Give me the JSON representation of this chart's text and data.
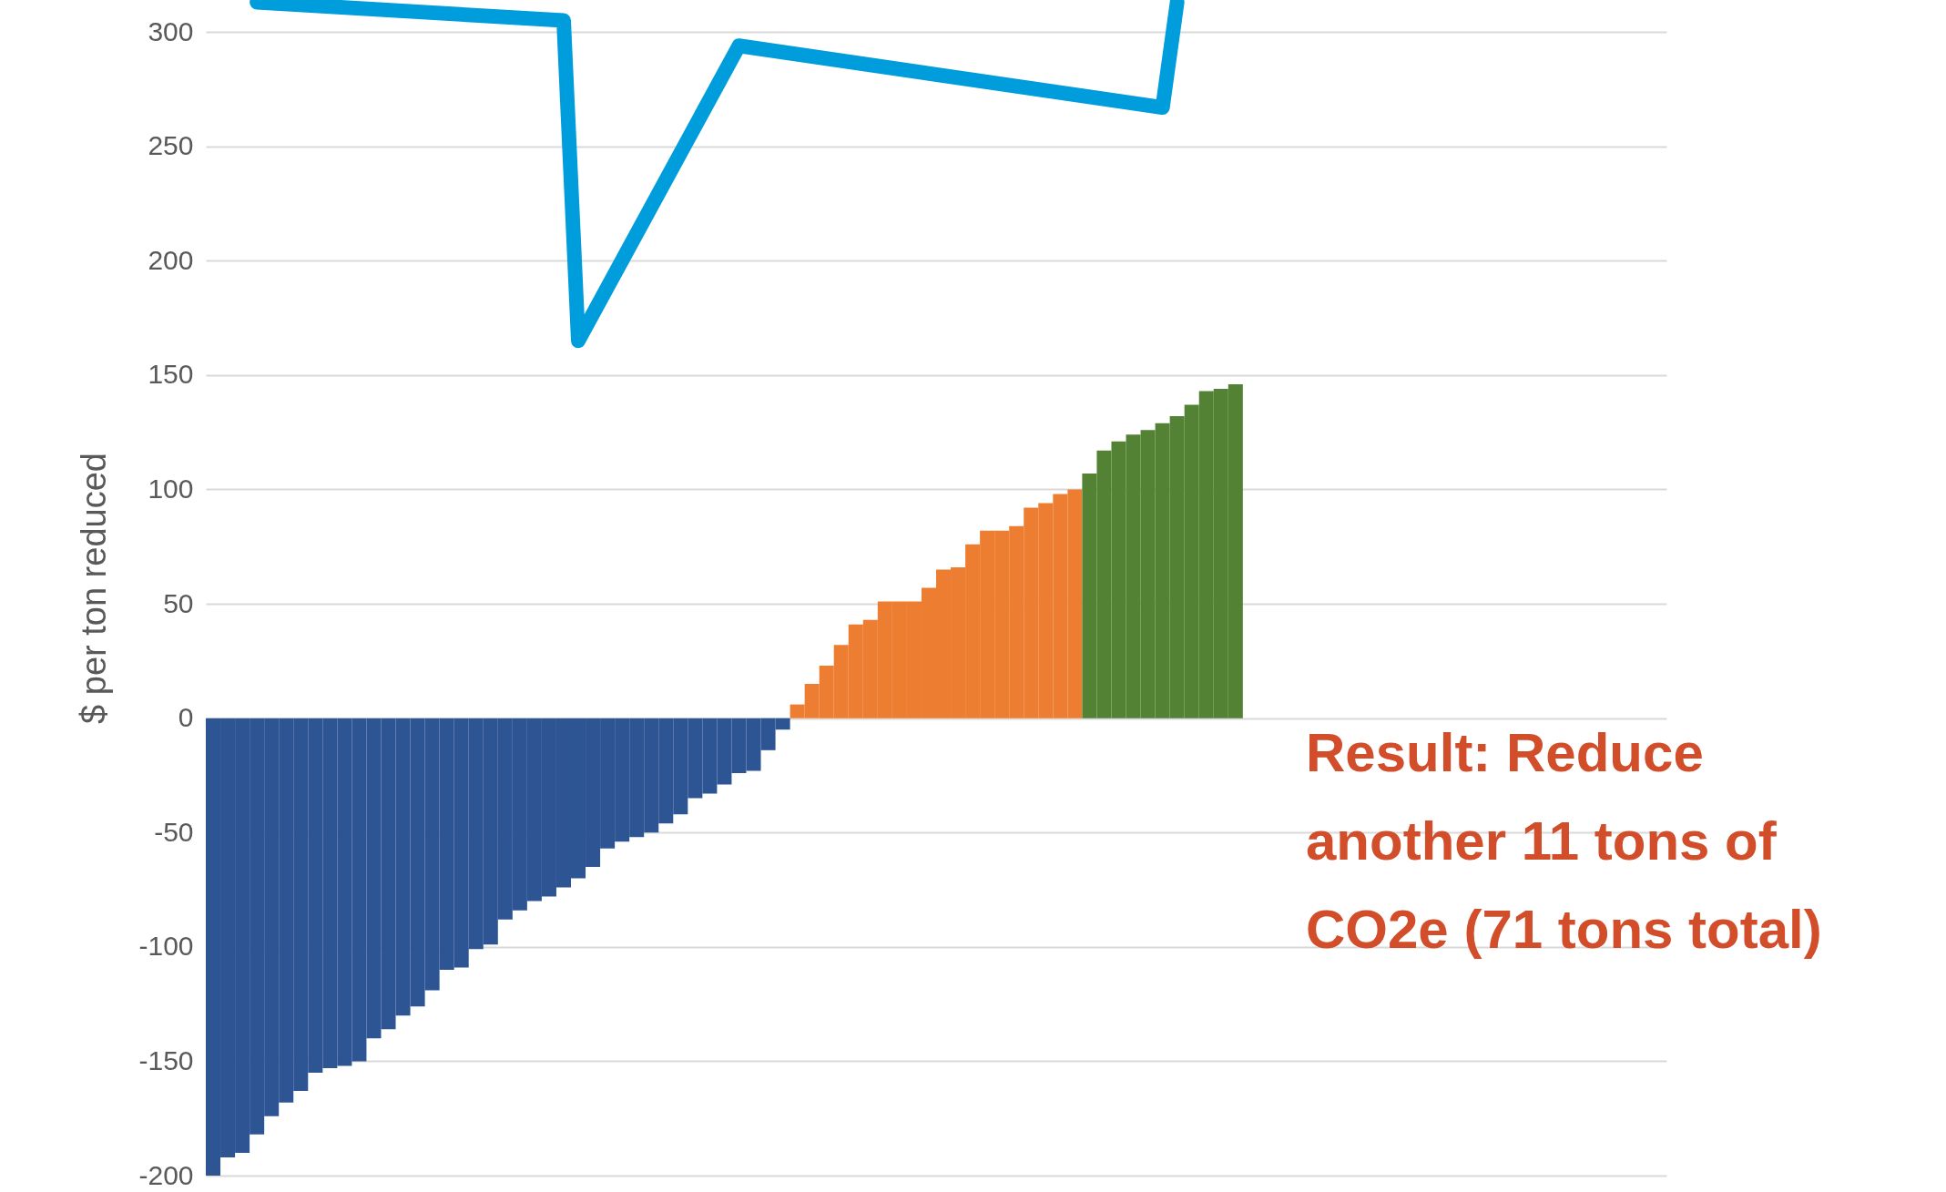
{
  "chart_data": {
    "type": "bar",
    "ylabel": "$ per ton reduced",
    "categories": [
      null,
      null,
      null,
      null,
      null,
      null,
      null,
      null,
      null,
      null,
      null,
      null,
      null,
      null,
      null,
      null,
      null,
      null,
      null,
      null,
      null,
      null,
      null,
      null,
      null,
      null,
      null,
      null,
      null,
      null,
      null,
      null,
      null,
      null,
      null,
      null,
      null,
      null,
      null,
      null,
      null,
      null,
      null,
      null,
      null,
      null,
      null,
      null,
      null,
      null,
      null,
      null,
      null,
      null,
      null,
      null,
      null,
      null,
      null,
      null,
      null,
      null,
      null,
      null,
      null,
      null,
      null,
      null,
      null,
      null,
      null,
      null,
      null,
      null,
      null,
      null,
      null,
      null,
      null,
      null,
      null,
      null,
      null,
      null,
      null,
      null,
      null,
      null,
      null,
      null,
      null,
      null,
      null,
      null,
      null,
      null,
      null,
      null,
      null,
      null
    ],
    "ylim": [
      -200,
      314
    ],
    "yticks": [
      -200,
      -150,
      -100,
      -50,
      0,
      50,
      100,
      150,
      200,
      250,
      300
    ],
    "grid": "y",
    "tick_labels": "y",
    "series": [
      {
        "color": "#2e5593",
        "values": [
          -200,
          -192,
          -190,
          -182,
          -174,
          -168,
          -163,
          -155,
          -153,
          -152,
          -150,
          -140,
          -136,
          -130,
          -126,
          -119,
          -110,
          -109,
          -101,
          -99,
          -88,
          -84,
          -80,
          -78,
          -74,
          -70,
          -65,
          -57,
          -54,
          -52,
          -50,
          -46,
          -42,
          -35,
          -33,
          -29,
          -24,
          -23,
          -14,
          -5,
          null,
          null,
          null,
          null,
          null,
          null,
          null,
          null,
          null,
          null,
          null,
          null,
          null,
          null,
          null,
          null,
          null,
          null,
          null,
          null,
          null,
          null,
          null,
          null,
          null,
          null,
          null,
          null,
          null,
          null,
          null,
          null,
          null,
          null,
          null,
          null,
          null,
          null,
          null,
          null,
          null,
          null,
          null,
          null,
          null,
          null,
          null,
          null,
          null,
          null,
          null,
          null,
          null,
          null,
          null,
          null,
          null,
          null,
          null,
          null
        ]
      },
      {
        "color": "#ed7d31",
        "values": [
          null,
          null,
          null,
          null,
          null,
          null,
          null,
          null,
          null,
          null,
          null,
          null,
          null,
          null,
          null,
          null,
          null,
          null,
          null,
          null,
          null,
          null,
          null,
          null,
          null,
          null,
          null,
          null,
          null,
          null,
          null,
          null,
          null,
          null,
          null,
          null,
          null,
          null,
          null,
          null,
          6,
          15,
          23,
          32,
          41,
          43,
          51,
          51,
          51,
          57,
          65,
          66,
          76,
          82,
          82,
          84,
          92,
          94,
          98,
          100,
          null,
          null,
          null,
          null,
          null,
          null,
          null,
          null,
          null,
          null,
          null,
          null,
          null,
          null,
          null,
          null,
          null,
          null,
          null,
          null,
          null,
          null,
          null,
          null,
          null,
          null,
          null,
          null,
          null,
          null,
          null,
          null,
          null,
          null,
          null,
          null,
          null,
          null,
          null,
          null
        ]
      },
      {
        "color": "#548235",
        "values": [
          null,
          null,
          null,
          null,
          null,
          null,
          null,
          null,
          null,
          null,
          null,
          null,
          null,
          null,
          null,
          null,
          null,
          null,
          null,
          null,
          null,
          null,
          null,
          null,
          null,
          null,
          null,
          null,
          null,
          null,
          null,
          null,
          null,
          null,
          null,
          null,
          null,
          null,
          null,
          null,
          null,
          null,
          null,
          null,
          null,
          null,
          null,
          null,
          null,
          null,
          null,
          null,
          null,
          null,
          null,
          null,
          null,
          null,
          null,
          null,
          107,
          117,
          121,
          124,
          126,
          129,
          132,
          137,
          143,
          144,
          146,
          null,
          null,
          null,
          null,
          null,
          null,
          null,
          null,
          null,
          null,
          null,
          null,
          null,
          null,
          null,
          null,
          null,
          null,
          null,
          null,
          null,
          null,
          null,
          null,
          null,
          null,
          null,
          null,
          null
        ]
      },
      {
        "type": "line",
        "color": "#009ddc",
        "values": [
          null,
          null,
          null,
          313,
          null,
          null,
          null,
          null,
          null,
          null,
          null,
          null,
          null,
          null,
          null,
          null,
          null,
          null,
          null,
          null,
          null,
          null,
          null,
          null,
          305,
          165,
          null,
          null,
          null,
          null,
          null,
          null,
          null,
          null,
          null,
          null,
          294,
          null,
          null,
          null,
          null,
          null,
          null,
          null,
          null,
          null,
          null,
          null,
          null,
          null,
          null,
          null,
          null,
          null,
          null,
          null,
          null,
          null,
          null,
          null,
          null,
          null,
          null,
          null,
          null,
          267,
          313,
          null,
          null,
          null,
          null,
          null,
          null,
          null,
          null,
          null,
          null,
          null,
          null,
          null,
          null,
          null,
          null,
          null,
          null,
          null,
          null,
          null,
          null,
          null,
          null,
          null,
          null,
          null,
          null,
          null,
          null,
          null,
          null,
          null
        ]
      }
    ],
    "annotations": [
      "Result: Reduce another 11 tons of CO2e (71 tons total)"
    ]
  }
}
